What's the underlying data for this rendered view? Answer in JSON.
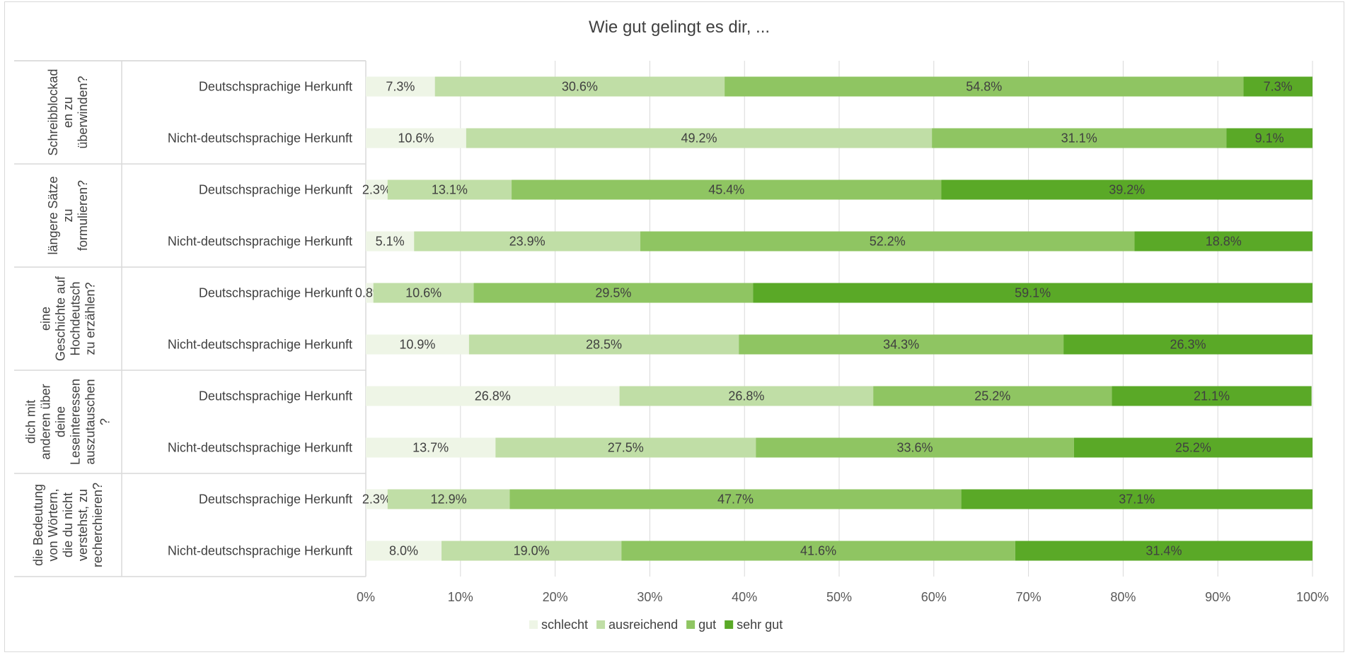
{
  "chart_data": {
    "type": "bar",
    "orientation": "horizontal",
    "stacked": "percent",
    "title": "Wie gut gelingt es dir, ...",
    "groups": [
      {
        "label": "Schreibblockaden zu überwinden?",
        "label_lines": [
          "Schreibblockad",
          "en zu",
          "überwinden?"
        ]
      },
      {
        "label": "längere Sätze zu formulieren?",
        "label_lines": [
          "längere Sätze",
          "zu",
          "formulieren?"
        ]
      },
      {
        "label": "eine Geschichte auf Hochdeutsch zu erzählen?",
        "label_lines": [
          "eine",
          "Geschichte auf",
          "Hochdeutsch",
          "zu erzählen?"
        ]
      },
      {
        "label": "dich mit anderen über deine Leseinteressen auszutauschen?",
        "label_lines": [
          "dich mit",
          "anderen über",
          "deine",
          "Leseinteressen",
          "auszutauschen",
          "?"
        ]
      },
      {
        "label": "die Bedeutung von Wörtern, die du nicht verstehst, zu recherchieren?",
        "label_lines": [
          "die Bedeutung",
          "von Wörtern,",
          "die du nicht",
          "verstehst, zu",
          "recherchieren?"
        ]
      }
    ],
    "row_labels": [
      "Deutschsprachige Herkunft",
      "Nicht-deutschsprachige Herkunft"
    ],
    "series": [
      {
        "name": "schlecht",
        "color": "#eef5e6",
        "values": [
          7.3,
          10.6,
          2.3,
          5.1,
          0.8,
          10.9,
          26.8,
          13.7,
          2.3,
          8.0
        ],
        "labels": [
          "7.3%",
          "10.6%",
          "2.3%",
          "5.1%",
          "0.8%",
          "10.9%",
          "26.8%",
          "13.7%",
          "2.3%",
          "8.0%"
        ]
      },
      {
        "name": "ausreichend",
        "color": "#c0dea6",
        "values": [
          30.6,
          49.2,
          13.1,
          23.9,
          10.6,
          28.5,
          26.8,
          27.5,
          12.9,
          19.0
        ],
        "labels": [
          "30.6%",
          "49.2%",
          "13.1%",
          "23.9%",
          "10.6%",
          "28.5%",
          "26.8%",
          "27.5%",
          "12.9%",
          "19.0%"
        ]
      },
      {
        "name": "gut",
        "color": "#8fc562",
        "values": [
          54.8,
          31.1,
          45.4,
          52.2,
          29.5,
          34.3,
          25.2,
          33.6,
          47.7,
          41.6
        ],
        "labels": [
          "54.8%",
          "31.1%",
          "45.4%",
          "52.2%",
          "29.5%",
          "34.3%",
          "25.2%",
          "33.6%",
          "47.7%",
          "41.6%"
        ]
      },
      {
        "name": "sehr gut",
        "color": "#5aa927",
        "values": [
          7.3,
          9.1,
          39.2,
          18.8,
          59.1,
          26.3,
          21.1,
          25.2,
          37.1,
          31.4
        ],
        "labels": [
          "7.3%",
          "9.1%",
          "39.2%",
          "18.8%",
          "59.1%",
          "26.3%",
          "21.1%",
          "25.2%",
          "37.1%",
          "31.4%"
        ]
      }
    ],
    "x_ticks": [
      "0%",
      "10%",
      "20%",
      "30%",
      "40%",
      "50%",
      "60%",
      "70%",
      "80%",
      "90%",
      "100%"
    ],
    "xlim": [
      0,
      100
    ],
    "grid": "vertical",
    "legend": "bottom"
  }
}
